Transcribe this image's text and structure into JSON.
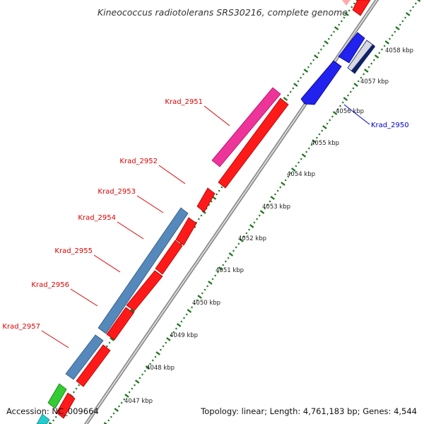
{
  "title": "Kineococcus radiotolerans SRS30216, complete genome",
  "footer": {
    "accession": "Accession: NC_009664",
    "topology": "Topology: linear; Length: 4,761,183 bp; Genes: 4,544"
  },
  "scale_labels": [
    "4058 kbp",
    "4057 kbp",
    "4056 kbp",
    "4055 kbp",
    "4054 kbp",
    "4053 kbp",
    "4052 kbp",
    "4051 kbp",
    "4050 kbp",
    "4049 kbp",
    "4048 kbp",
    "4047 kbp"
  ],
  "gene_labels": [
    {
      "id": "Krad_2951",
      "color": "#dd0000"
    },
    {
      "id": "Krad_2952",
      "color": "#dd0000"
    },
    {
      "id": "Krad_2953",
      "color": "#dd0000"
    },
    {
      "id": "Krad_2954",
      "color": "#dd0000"
    },
    {
      "id": "Krad_2955",
      "color": "#dd0000"
    },
    {
      "id": "Krad_2956",
      "color": "#dd0000"
    },
    {
      "id": "Krad_2957",
      "color": "#dd0000"
    },
    {
      "id": "Krad_2950",
      "color": "#0000cc"
    }
  ],
  "colors": {
    "cds": "#ff1a1a",
    "gene_blue": "#2222ee",
    "gene_steel": "#5588bb",
    "gene_pink": "#ee3399",
    "gene_green": "#33cc33",
    "gene_cyan": "#22cccc",
    "gene_navy": "#112266",
    "backbone": "#999999",
    "ticks": "#227722"
  }
}
